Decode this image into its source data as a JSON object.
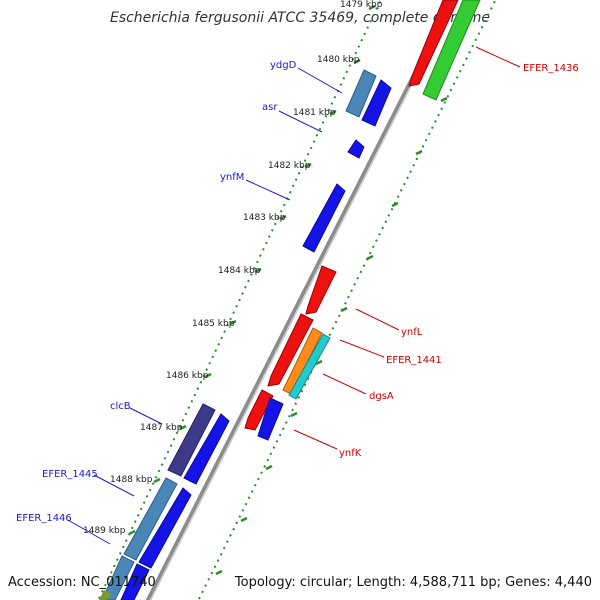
{
  "title": "Escherichia fergusonii ATCC 35469, complete genome",
  "footer": {
    "accession": "Accession: NC_011740",
    "summary": "Topology: circular; Length: 4,588,711 bp; Genes: 4,440"
  },
  "colors": {
    "backbone": "#8c8c8c",
    "tick": "#2e8b2e",
    "left_label": "#1a1acc",
    "right_label": "#cc0000"
  },
  "ticks": [
    "1479 kbp",
    "1480 kbp",
    "1481 kbp",
    "1482 kbp",
    "1483 kbp",
    "1484 kbp",
    "1485 kbp",
    "1486 kbp",
    "1487 kbp",
    "1488 kbp",
    "1489 kbp"
  ],
  "genes_left": [
    {
      "label": "ydgD",
      "color": "#4a86b8"
    },
    {
      "label": "asr",
      "color": "#1414e6"
    },
    {
      "label": "ynfM",
      "color": "#1414e6"
    },
    {
      "label": "clcB",
      "color": "#3d3a8a"
    },
    {
      "label": "EFER_1445",
      "color": "#4a86b8"
    },
    {
      "label": "EFER_1446",
      "color": "#4a86b8"
    }
  ],
  "genes_right": [
    {
      "label": "EFER_1436",
      "color": "#33cc33"
    },
    {
      "label": "ynfL",
      "color": "#ee1111"
    },
    {
      "label": "EFER_1441",
      "color": "#ee1111"
    },
    {
      "label": "dgsA",
      "color": "#ff8c1a"
    },
    {
      "label": "ynfK",
      "color": "#1414e6"
    }
  ]
}
